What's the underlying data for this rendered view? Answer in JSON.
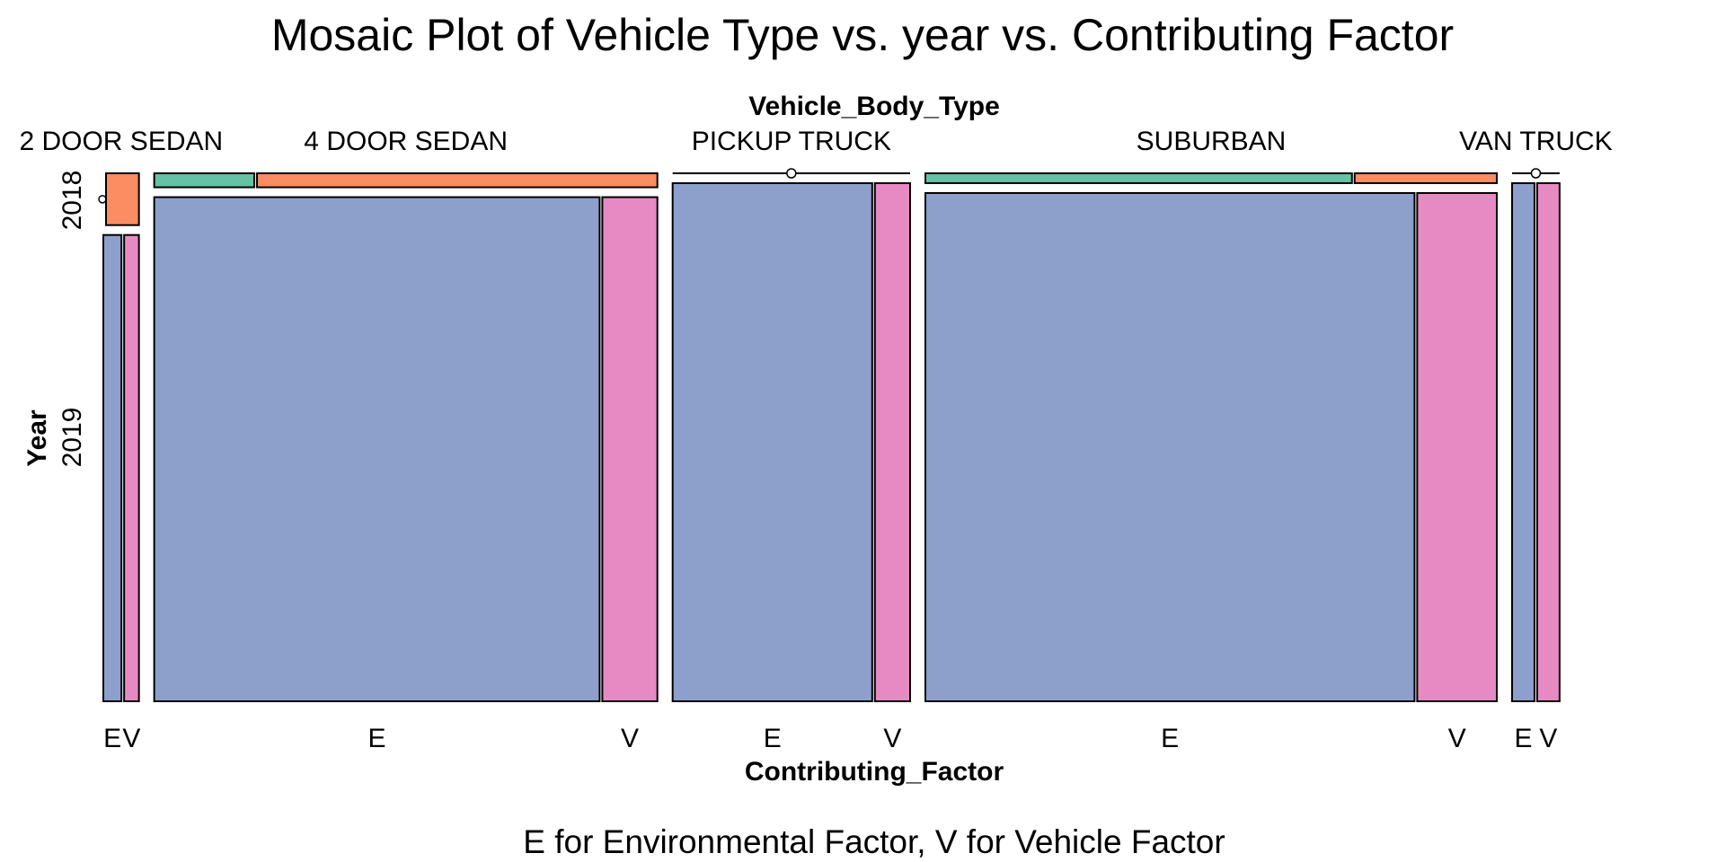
{
  "chart_data": {
    "type": "mosaic",
    "title": "Mosaic Plot of Vehicle Type vs. year vs. Contributing Factor",
    "caption": "E for Environmental Factor, V for Vehicle Factor",
    "variables": {
      "top": "Vehicle_Body_Type",
      "left": "Year",
      "bottom": "Contributing_Factor"
    },
    "vehicle_types": [
      "2 DOOR SEDAN",
      "4 DOOR SEDAN",
      "PICKUP TRUCK",
      "SUBURBAN",
      "VAN TRUCK"
    ],
    "vehicle_shares": [
      0.024,
      0.339,
      0.16,
      0.385,
      0.032
    ],
    "years": [
      "2018",
      "2019"
    ],
    "factors": [
      "E",
      "V"
    ],
    "factor_labels": [
      [
        "E",
        "V"
      ],
      [
        "E",
        "V"
      ],
      [
        "E",
        "V"
      ],
      [
        "E",
        "V"
      ],
      [
        "E",
        "V"
      ]
    ],
    "year_share_2018": [
      0.1,
      0.027,
      0.0,
      0.019,
      0.0
    ],
    "cells_2018": [
      {
        "E": 0.0,
        "V": 1.0
      },
      {
        "E": 0.2,
        "V": 0.8
      },
      {
        "E": null,
        "V": null
      },
      {
        "E": 0.75,
        "V": 0.25
      },
      {
        "E": null,
        "V": null
      }
    ],
    "cells_2019": [
      {
        "E": 0.55,
        "V": 0.45
      },
      {
        "E": 0.89,
        "V": 0.11
      },
      {
        "E": 0.85,
        "V": 0.15
      },
      {
        "E": 0.86,
        "V": 0.14
      },
      {
        "E": 0.5,
        "V": 0.5
      }
    ],
    "colors": {
      "2018_E": "#66c2a5",
      "2018_V": "#fc8d62",
      "2019_E": "#8da0cb",
      "2019_V": "#e78ac3"
    }
  }
}
